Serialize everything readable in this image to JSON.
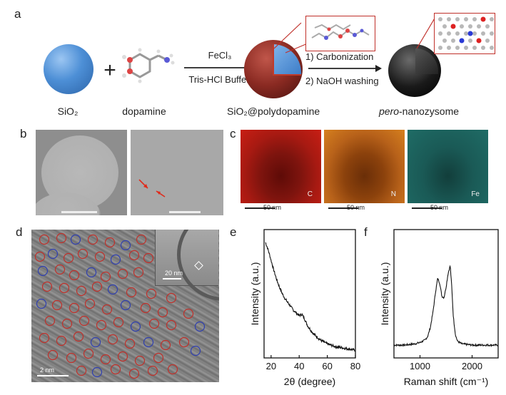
{
  "panels": {
    "a": {
      "letter": "a",
      "sio2_label": "SiO₂",
      "dopamine_label": "dopamine",
      "reagent_top": "FeCl₃",
      "reagent_bottom": "Tris-HCl Buffer",
      "sio2_pda_label": "SiO₂@polydopamine",
      "step1": "1) Carbonization",
      "step2": "2) NaOH washing",
      "product_prefix": "pero",
      "product_suffix": "-nanozysome",
      "plus": "+"
    },
    "b": {
      "letter": "b"
    },
    "c": {
      "letter": "c",
      "maps": [
        {
          "element": "C",
          "scalebar": "50 nm",
          "color": "#c41a12"
        },
        {
          "element": "N",
          "scalebar": "50 nm",
          "color": "#e07a18"
        },
        {
          "element": "Fe",
          "scalebar": "50 nm",
          "color": "#2aa7a0"
        }
      ]
    },
    "d": {
      "letter": "d",
      "inset_scalebar": "20 nm",
      "scalebar": "2 nm"
    },
    "e": {
      "letter": "e",
      "chart_data": {
        "type": "line",
        "xlabel": "2θ (degree)",
        "ylabel": "Intensity (a.u.)",
        "xlim": [
          15,
          80
        ],
        "xticks": [
          20,
          40,
          60,
          80
        ],
        "ylim": [
          0,
          1
        ],
        "x": [
          16,
          18,
          20,
          22,
          24,
          26,
          28,
          30,
          32,
          34,
          36,
          38,
          40,
          42,
          44,
          46,
          48,
          50,
          55,
          60,
          65,
          70,
          75,
          80
        ],
        "y": [
          0.9,
          0.84,
          0.76,
          0.68,
          0.61,
          0.55,
          0.5,
          0.46,
          0.43,
          0.4,
          0.37,
          0.35,
          0.33,
          0.34,
          0.3,
          0.25,
          0.22,
          0.19,
          0.14,
          0.11,
          0.09,
          0.08,
          0.07,
          0.06
        ]
      }
    },
    "f": {
      "letter": "f",
      "chart_data": {
        "type": "line",
        "xlabel": "Raman shift (cm⁻¹)",
        "ylabel": "Intensity (a.u.)",
        "xlim": [
          500,
          2500
        ],
        "xticks": [
          1000,
          2000
        ],
        "ylim": [
          0,
          1
        ],
        "x": [
          500,
          700,
          900,
          1000,
          1100,
          1150,
          1200,
          1250,
          1300,
          1340,
          1380,
          1420,
          1460,
          1500,
          1540,
          1580,
          1610,
          1640,
          1680,
          1720,
          1800,
          2000,
          2200,
          2500
        ],
        "y": [
          0.1,
          0.1,
          0.11,
          0.12,
          0.14,
          0.17,
          0.24,
          0.36,
          0.52,
          0.62,
          0.58,
          0.48,
          0.47,
          0.55,
          0.66,
          0.72,
          0.55,
          0.32,
          0.18,
          0.13,
          0.11,
          0.1,
          0.1,
          0.1
        ]
      }
    }
  },
  "colors": {
    "sio2_blue": "#4d8fd6",
    "pda_red": "#8a2a22",
    "carbon_black": "#1a1a1a",
    "arrow_red": "#d03a2a",
    "circle_red": "#c0302a",
    "circle_blue": "#2f3fb0"
  }
}
